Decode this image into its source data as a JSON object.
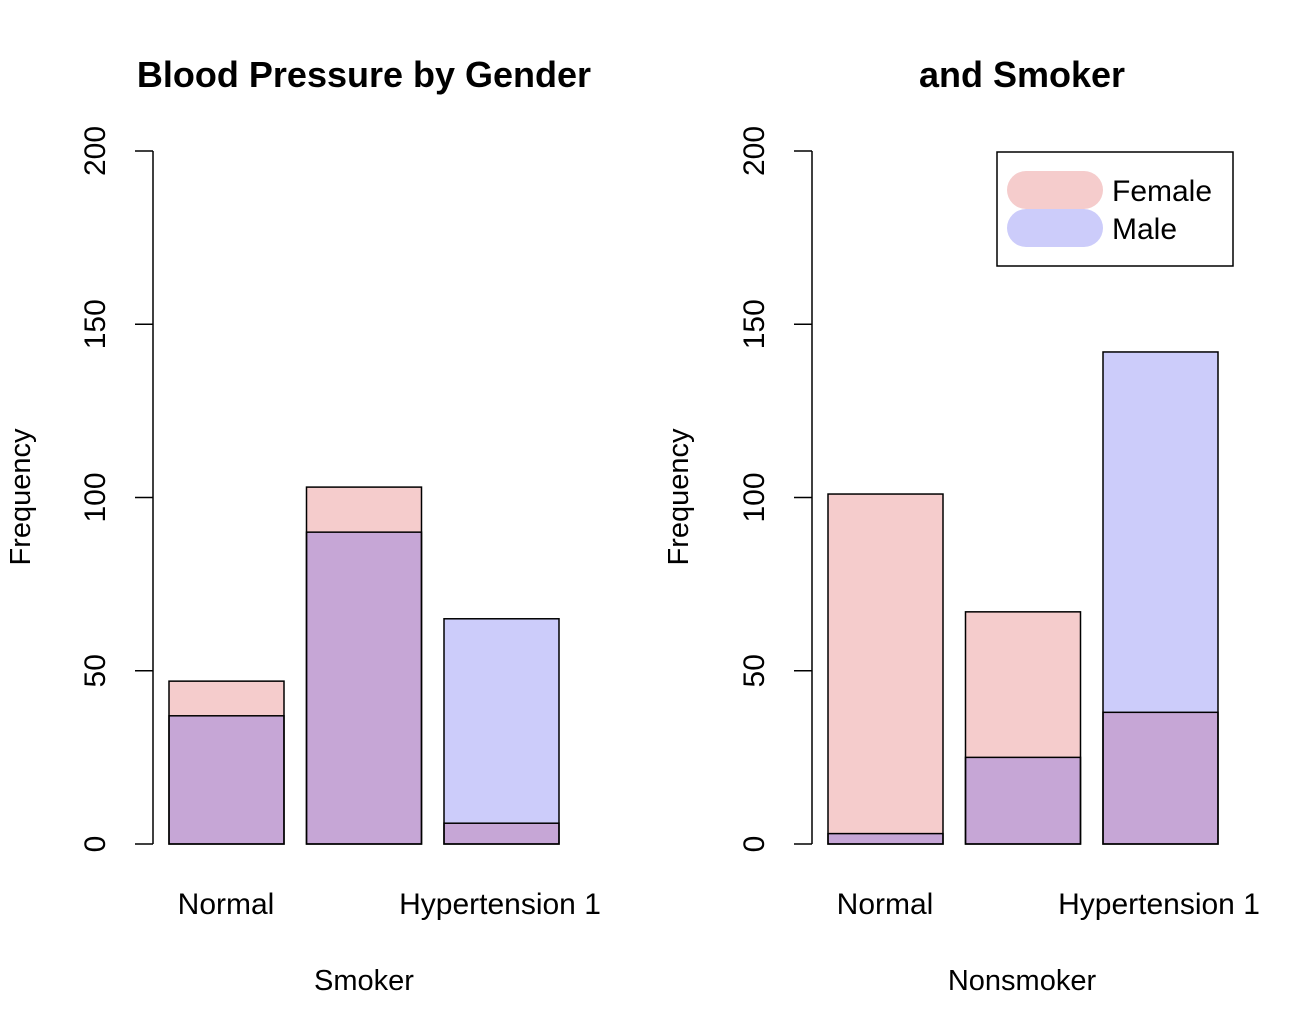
{
  "chart_data": [
    {
      "type": "bar",
      "title": "Blood Pressure by Gender",
      "xlabel": "Smoker",
      "ylabel": "Frequency",
      "ylim": [
        0,
        200
      ],
      "yticks": [
        "0",
        "50",
        "100",
        "150",
        "200"
      ],
      "categories": [
        "Normal",
        "",
        "Hypertension 1"
      ],
      "category_labels": [
        "Normal",
        "Hypertension 1"
      ],
      "series": [
        {
          "name": "Female",
          "color": "#f5cccc",
          "values": [
            47,
            103,
            6
          ]
        },
        {
          "name": "Male",
          "color": "#ccccfa",
          "values": [
            37,
            90,
            65
          ]
        }
      ],
      "overlap_color": "#c6a6d6",
      "grid": false
    },
    {
      "type": "bar",
      "title": "and Smoker",
      "xlabel": "Nonsmoker",
      "ylabel": "Frequency",
      "ylim": [
        0,
        200
      ],
      "yticks": [
        "0",
        "50",
        "100",
        "150",
        "200"
      ],
      "categories": [
        "Normal",
        "",
        "Hypertension 1"
      ],
      "category_labels": [
        "Normal",
        "Hypertension 1"
      ],
      "series": [
        {
          "name": "Female",
          "color": "#f5cccc",
          "values": [
            101,
            67,
            38
          ]
        },
        {
          "name": "Male",
          "color": "#ccccfa",
          "values": [
            3,
            25,
            142
          ]
        }
      ],
      "overlap_color": "#c6a6d6",
      "grid": false,
      "legend": {
        "position": "top-right",
        "entries": [
          "Female",
          "Male"
        ]
      }
    }
  ]
}
